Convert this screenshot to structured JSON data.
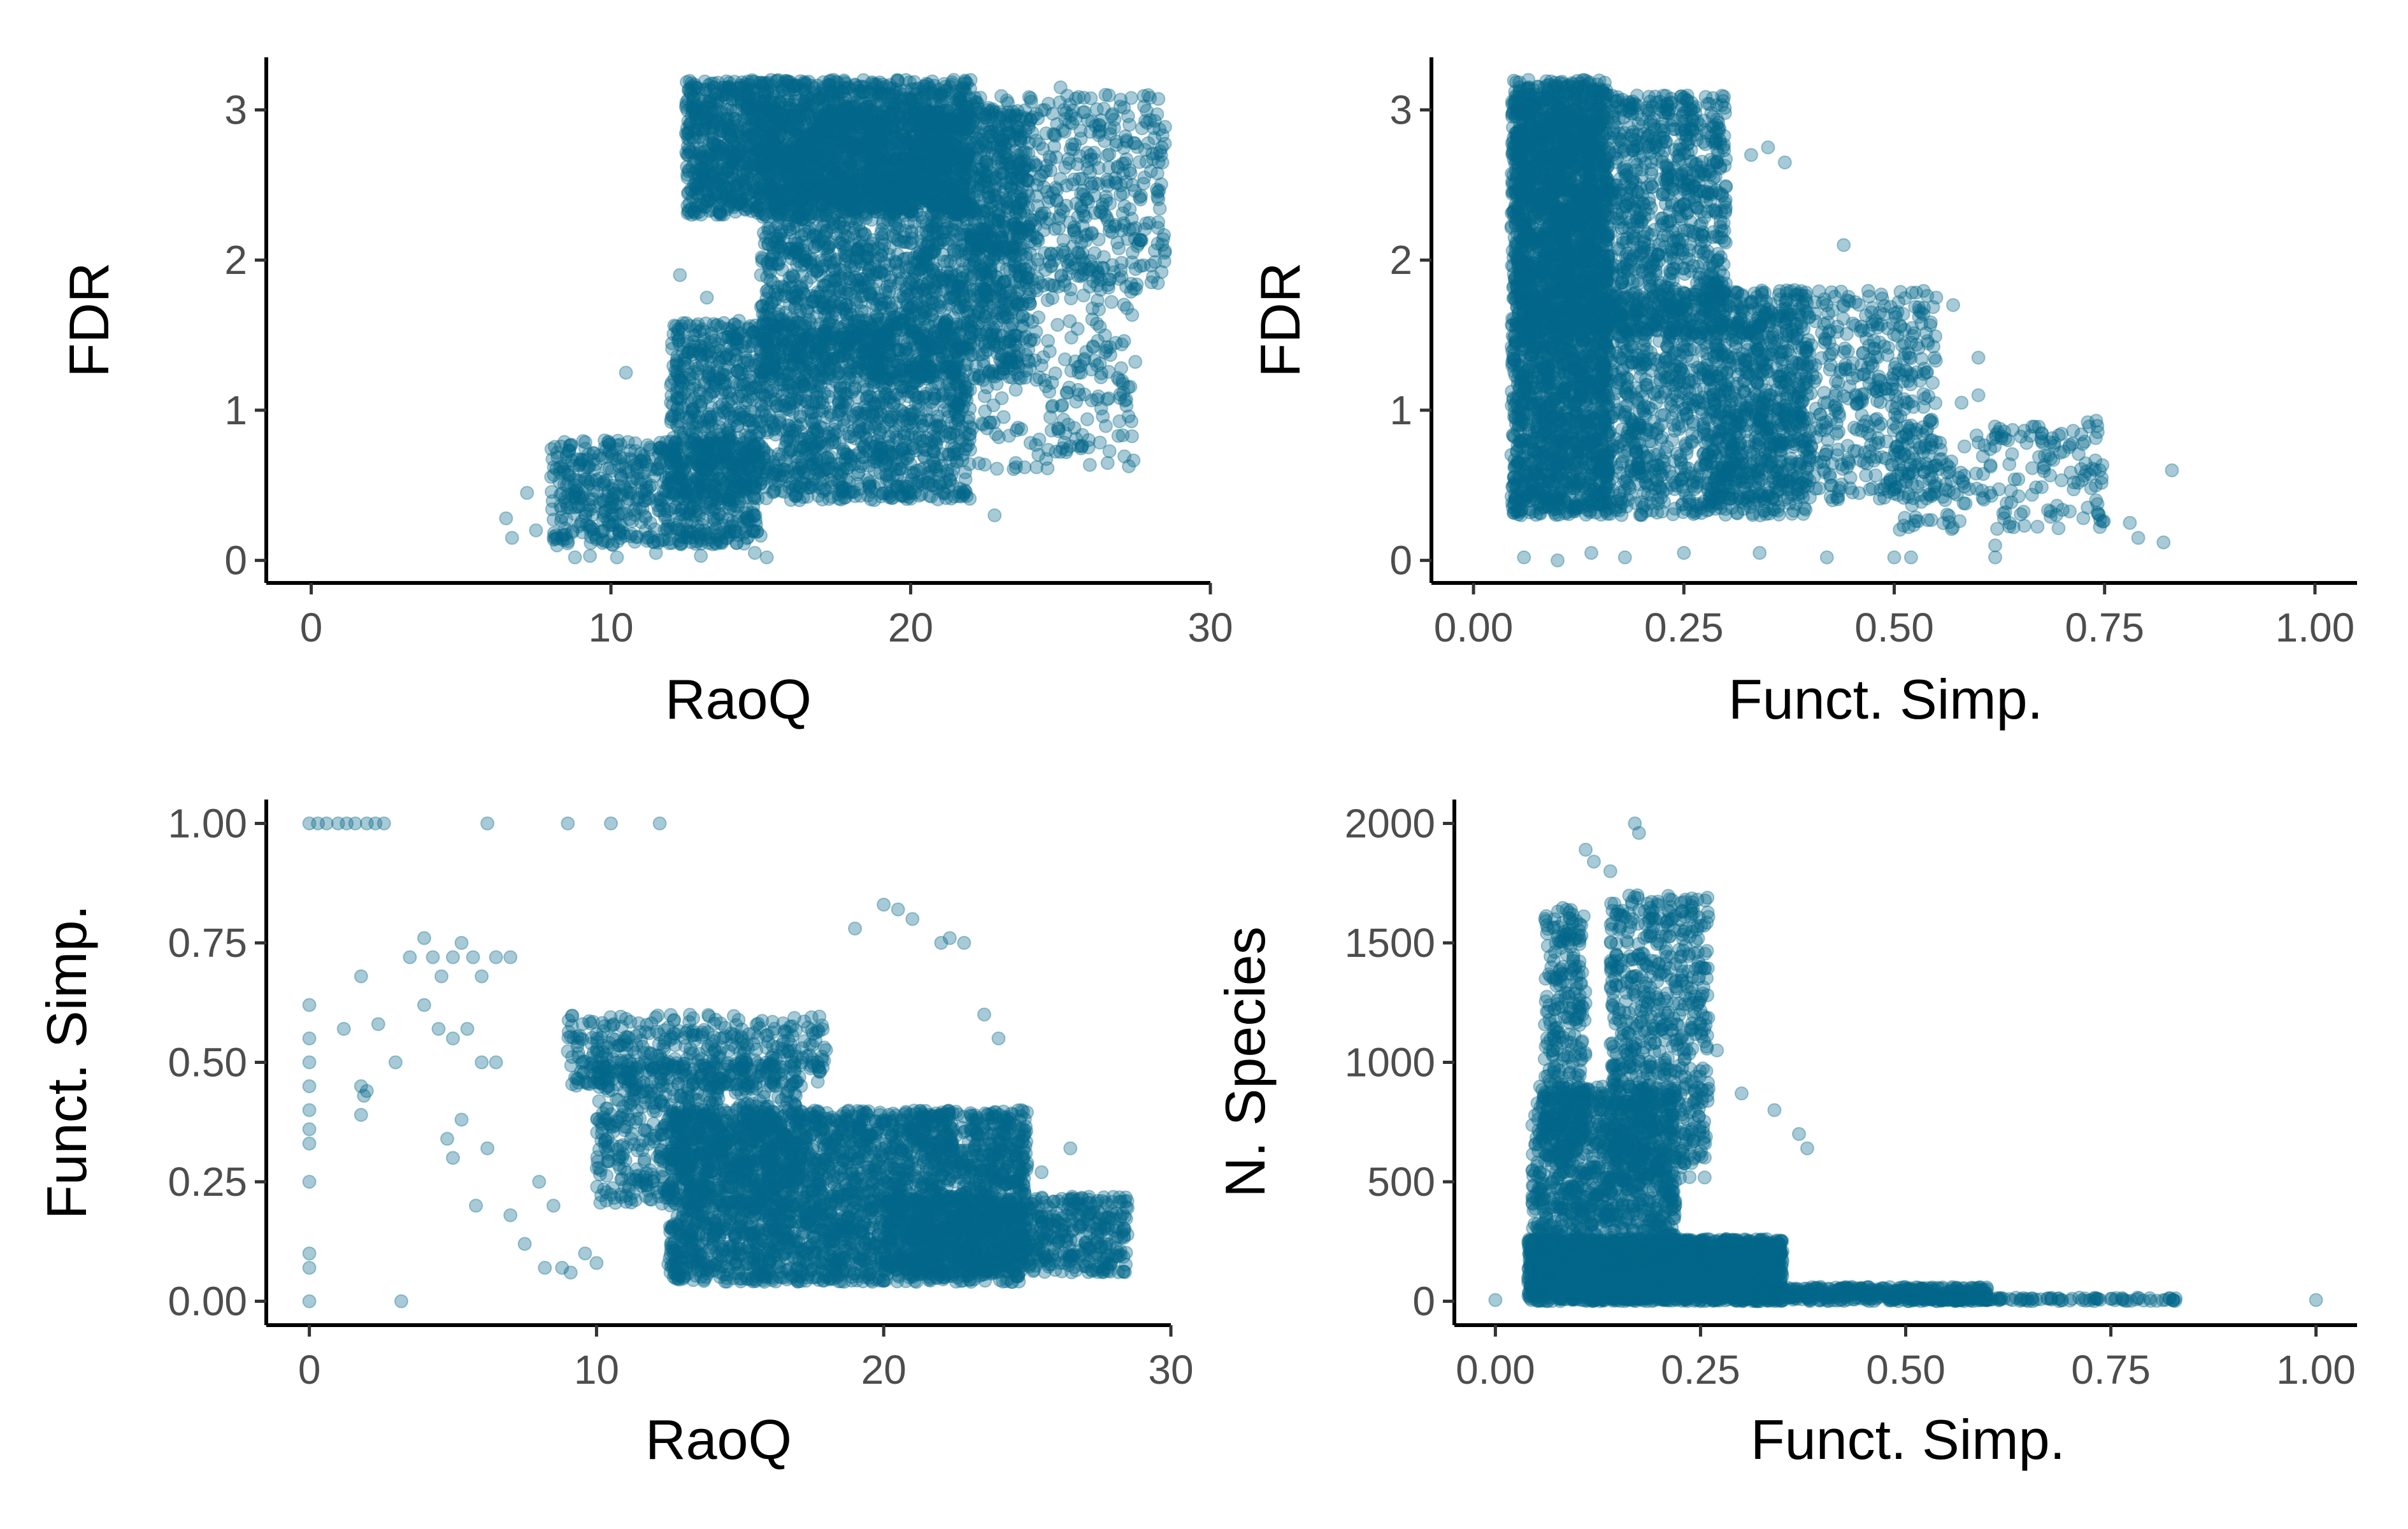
{
  "figure": {
    "title": "",
    "point_color": "#03678a",
    "point_opacity": 0.35
  },
  "chart_data": [
    {
      "id": "raoq-vs-fdr",
      "type": "scatter",
      "title": "",
      "xlabel": "RaoQ",
      "ylabel": "FDR",
      "xlim": [
        -1.5,
        30
      ],
      "ylim": [
        -0.15,
        3.35
      ],
      "xticks": [
        0,
        10,
        20,
        30
      ],
      "xtick_labels": [
        "0",
        "10",
        "20",
        "30"
      ],
      "yticks": [
        0,
        1,
        2,
        3
      ],
      "ytick_labels": [
        "0",
        "1",
        "2",
        "3"
      ],
      "series": [
        {
          "name": "points",
          "color": "#03678a"
        }
      ],
      "density_regions": [
        {
          "x": [
            12.5,
            22
          ],
          "y": [
            2.3,
            3.2
          ],
          "n": 2200
        },
        {
          "x": [
            15,
            24
          ],
          "y": [
            1.2,
            3.0
          ],
          "n": 2200
        },
        {
          "x": [
            12,
            22
          ],
          "y": [
            0.4,
            1.6
          ],
          "n": 1800
        },
        {
          "x": [
            8,
            15
          ],
          "y": [
            0.1,
            0.8
          ],
          "n": 700
        },
        {
          "x": [
            20,
            28.5
          ],
          "y": [
            1.8,
            3.1
          ],
          "n": 600
        },
        {
          "x": [
            22,
            27.5
          ],
          "y": [
            0.6,
            2.4
          ],
          "n": 300
        }
      ],
      "sparse_points": [
        [
          6.5,
          0.28
        ],
        [
          6.7,
          0.15
        ],
        [
          7.2,
          0.45
        ],
        [
          7.5,
          0.2
        ],
        [
          8.2,
          0.1
        ],
        [
          8.8,
          0.02
        ],
        [
          9.3,
          0.03
        ],
        [
          10.2,
          0.02
        ],
        [
          11.5,
          0.05
        ],
        [
          13,
          0.03
        ],
        [
          14.8,
          0.05
        ],
        [
          15.2,
          0.02
        ],
        [
          10.5,
          1.25
        ],
        [
          12.0,
          1.05
        ],
        [
          12.8,
          1.5
        ],
        [
          12.3,
          1.9
        ],
        [
          13.2,
          1.75
        ],
        [
          27.2,
          1.03
        ],
        [
          28.4,
          2.65
        ],
        [
          27.8,
          2.55
        ],
        [
          26.5,
          3.1
        ],
        [
          25.0,
          3.15
        ],
        [
          24.2,
          0.62
        ],
        [
          25.6,
          1.25
        ],
        [
          26.2,
          1.95
        ],
        [
          22.8,
          0.3
        ],
        [
          23.8,
          0.62
        ]
      ]
    },
    {
      "id": "functsimp-vs-fdr",
      "type": "scatter",
      "title": "",
      "xlabel": "Funct. Simp.",
      "ylabel": "FDR",
      "xlim": [
        -0.05,
        1.05
      ],
      "ylim": [
        -0.15,
        3.35
      ],
      "xticks": [
        0,
        0.25,
        0.5,
        0.75,
        1.0
      ],
      "xtick_labels": [
        "0.00",
        "0.25",
        "0.50",
        "0.75",
        "1.00"
      ],
      "yticks": [
        0,
        1,
        2,
        3
      ],
      "ytick_labels": [
        "0",
        "1",
        "2",
        "3"
      ],
      "series": [
        {
          "name": "points",
          "color": "#03678a"
        }
      ],
      "density_regions": [
        {
          "x": [
            0.045,
            0.16
          ],
          "y": [
            0.3,
            3.2
          ],
          "n": 2600
        },
        {
          "x": [
            0.05,
            0.3
          ],
          "y": [
            1.5,
            3.1
          ],
          "n": 1500
        },
        {
          "x": [
            0.15,
            0.4
          ],
          "y": [
            0.3,
            1.8
          ],
          "n": 1300
        },
        {
          "x": [
            0.28,
            0.55
          ],
          "y": [
            0.4,
            1.8
          ],
          "n": 700
        },
        {
          "x": [
            0.5,
            0.75
          ],
          "y": [
            0.2,
            0.9
          ],
          "n": 220
        }
      ],
      "sparse_points": [
        [
          0.06,
          0.02
        ],
        [
          0.1,
          0.0
        ],
        [
          0.14,
          0.05
        ],
        [
          0.18,
          0.02
        ],
        [
          0.25,
          0.05
        ],
        [
          0.34,
          0.05
        ],
        [
          0.42,
          0.02
        ],
        [
          0.5,
          0.02
        ],
        [
          0.52,
          0.02
        ],
        [
          0.62,
          0.02
        ],
        [
          0.62,
          0.1
        ],
        [
          0.78,
          0.25
        ],
        [
          0.79,
          0.15
        ],
        [
          0.82,
          0.12
        ],
        [
          0.83,
          0.6
        ],
        [
          0.73,
          0.92
        ],
        [
          0.74,
          0.93
        ],
        [
          0.58,
          1.05
        ],
        [
          0.6,
          1.1
        ],
        [
          0.55,
          1.75
        ],
        [
          0.57,
          1.7
        ],
        [
          0.6,
          1.35
        ],
        [
          0.52,
          1.45
        ],
        [
          0.44,
          2.1
        ],
        [
          0.33,
          2.7
        ],
        [
          0.35,
          2.75
        ],
        [
          0.37,
          2.65
        ]
      ]
    },
    {
      "id": "raoq-vs-functsimp",
      "type": "scatter",
      "title": "",
      "xlabel": "RaoQ",
      "ylabel": "Funct. Simp.",
      "xlim": [
        -1.5,
        30
      ],
      "ylim": [
        -0.05,
        1.05
      ],
      "xticks": [
        0,
        10,
        20,
        30
      ],
      "xtick_labels": [
        "0",
        "10",
        "20",
        "30"
      ],
      "yticks": [
        0,
        0.25,
        0.5,
        0.75,
        1.0
      ],
      "ytick_labels": [
        "0.00",
        "0.25",
        "0.50",
        "0.75",
        "1.00"
      ],
      "series": [
        {
          "name": "points",
          "color": "#03678a"
        }
      ],
      "density_regions": [
        {
          "x": [
            12.5,
            25
          ],
          "y": [
            0.04,
            0.4
          ],
          "n": 3200
        },
        {
          "x": [
            10,
            17
          ],
          "y": [
            0.2,
            0.5
          ],
          "n": 700
        },
        {
          "x": [
            20,
            28.5
          ],
          "y": [
            0.06,
            0.22
          ],
          "n": 800
        },
        {
          "x": [
            9,
            18
          ],
          "y": [
            0.45,
            0.6
          ],
          "n": 400
        }
      ],
      "sparse_points": [
        [
          0,
          1.0
        ],
        [
          0.3,
          1.0
        ],
        [
          0.6,
          1.0
        ],
        [
          1.0,
          1.0
        ],
        [
          1.3,
          1.0
        ],
        [
          1.6,
          1.0
        ],
        [
          2.0,
          1.0
        ],
        [
          2.3,
          1.0
        ],
        [
          2.6,
          1.0
        ],
        [
          6.2,
          1.0
        ],
        [
          9.0,
          1.0
        ],
        [
          10.5,
          1.0
        ],
        [
          12.2,
          1.0
        ],
        [
          0,
          0.62
        ],
        [
          0,
          0.55
        ],
        [
          0,
          0.5
        ],
        [
          0,
          0.45
        ],
        [
          0,
          0.4
        ],
        [
          0,
          0.36
        ],
        [
          0,
          0.33
        ],
        [
          0,
          0.25
        ],
        [
          0,
          0.1
        ],
        [
          0,
          0.07
        ],
        [
          0,
          0.0
        ],
        [
          1.8,
          0.68
        ],
        [
          1.8,
          0.45
        ],
        [
          2.0,
          0.44
        ],
        [
          1.9,
          0.43
        ],
        [
          1.8,
          0.39
        ],
        [
          1.2,
          0.57
        ],
        [
          2.4,
          0.58
        ],
        [
          3.2,
          0.0
        ],
        [
          3.0,
          0.5
        ],
        [
          3.5,
          0.72
        ],
        [
          4.0,
          0.76
        ],
        [
          4.3,
          0.72
        ],
        [
          4.6,
          0.68
        ],
        [
          5.0,
          0.72
        ],
        [
          5.3,
          0.75
        ],
        [
          5.7,
          0.72
        ],
        [
          6.0,
          0.68
        ],
        [
          6.5,
          0.72
        ],
        [
          7.0,
          0.72
        ],
        [
          4.0,
          0.62
        ],
        [
          4.5,
          0.57
        ],
        [
          5.0,
          0.55
        ],
        [
          5.5,
          0.57
        ],
        [
          6.0,
          0.5
        ],
        [
          6.5,
          0.5
        ],
        [
          4.8,
          0.34
        ],
        [
          5.0,
          0.3
        ],
        [
          5.3,
          0.38
        ],
        [
          5.8,
          0.2
        ],
        [
          6.2,
          0.32
        ],
        [
          8.0,
          0.25
        ],
        [
          8.5,
          0.2
        ],
        [
          7.0,
          0.18
        ],
        [
          7.5,
          0.12
        ],
        [
          8.2,
          0.07
        ],
        [
          8.8,
          0.07
        ],
        [
          9.1,
          0.06
        ],
        [
          9.6,
          0.1
        ],
        [
          10.0,
          0.08
        ],
        [
          20.0,
          0.83
        ],
        [
          20.5,
          0.82
        ],
        [
          21.0,
          0.8
        ],
        [
          19.0,
          0.78
        ],
        [
          22.0,
          0.75
        ],
        [
          22.3,
          0.76
        ],
        [
          22.8,
          0.75
        ],
        [
          24.0,
          0.55
        ],
        [
          23.5,
          0.6
        ],
        [
          24.8,
          0.4
        ],
        [
          26.5,
          0.32
        ],
        [
          25.5,
          0.27
        ]
      ]
    },
    {
      "id": "functsimp-vs-nspecies",
      "type": "scatter",
      "title": "",
      "xlabel": "Funct. Simp.",
      "ylabel": "N. Species",
      "xlim": [
        -0.05,
        1.05
      ],
      "ylim": [
        -100,
        2100
      ],
      "xticks": [
        0,
        0.25,
        0.5,
        0.75,
        1.0
      ],
      "xtick_labels": [
        "0.00",
        "0.25",
        "0.50",
        "0.75",
        "1.00"
      ],
      "yticks": [
        0,
        500,
        1000,
        1500,
        2000
      ],
      "ytick_labels": [
        "0",
        "500",
        "1000",
        "1500",
        "2000"
      ],
      "series": [
        {
          "name": "points",
          "color": "#03678a"
        }
      ],
      "density_regions": [
        {
          "x": [
            0.04,
            0.35
          ],
          "y": [
            0,
            260
          ],
          "n": 3000
        },
        {
          "x": [
            0.045,
            0.22
          ],
          "y": [
            100,
            900
          ],
          "n": 1300
        },
        {
          "x": [
            0.14,
            0.26
          ],
          "y": [
            500,
            1700
          ],
          "n": 700
        },
        {
          "x": [
            0.06,
            0.11
          ],
          "y": [
            600,
            1650
          ],
          "n": 300
        },
        {
          "x": [
            0.3,
            0.6
          ],
          "y": [
            0,
            60
          ],
          "n": 500
        },
        {
          "x": [
            0.5,
            0.83
          ],
          "y": [
            0,
            15
          ],
          "n": 120
        }
      ],
      "sparse_points": [
        [
          0.0,
          5
        ],
        [
          1.0,
          5
        ],
        [
          0.17,
          2000
        ],
        [
          0.175,
          1960
        ],
        [
          0.11,
          1890
        ],
        [
          0.12,
          1840
        ],
        [
          0.14,
          1800
        ],
        [
          0.34,
          800
        ],
        [
          0.37,
          700
        ],
        [
          0.38,
          640
        ],
        [
          0.3,
          870
        ],
        [
          0.27,
          1050
        ]
      ]
    }
  ]
}
